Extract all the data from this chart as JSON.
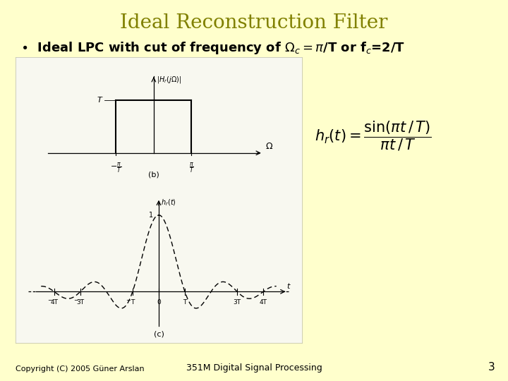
{
  "title": "Ideal Reconstruction Filter",
  "title_color": "#808000",
  "title_fontsize": 20,
  "bg_color": "#FFFFCC",
  "panel_bg": "#f8f8f0",
  "copyright_text": "Copyright (C) 2005 Güner Arslan",
  "center_text": "351M Digital Signal Processing",
  "page_num": "3",
  "footer_fontsize": 8
}
